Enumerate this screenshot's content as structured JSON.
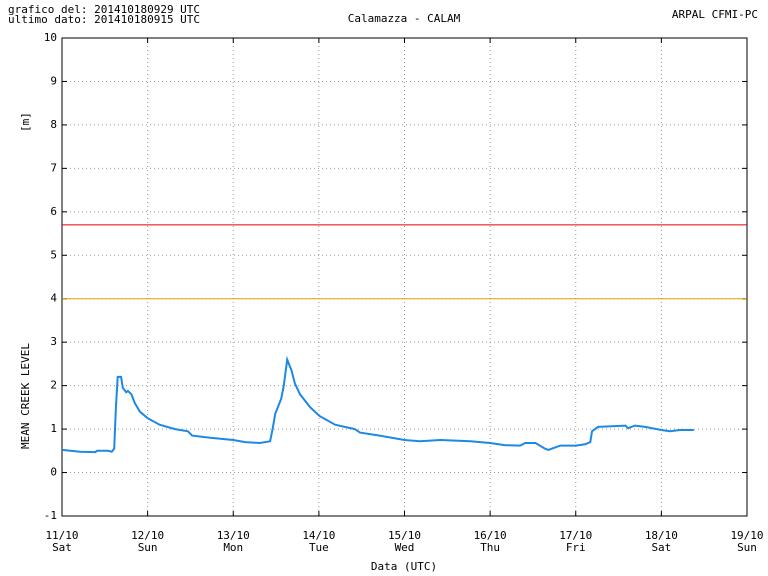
{
  "chart_data": {
    "type": "line",
    "title": "Calamazza - CALAM",
    "header_left": [
      "grafico del: 201410180929 UTC",
      "ultimo dato: 201410180915 UTC"
    ],
    "header_right": "ARPAL CFMI-PC",
    "y_unit": "[m]",
    "y_label": "MEAN CREEK LEVEL",
    "x_label": "Data (UTC)",
    "xlim": [
      11,
      19
    ],
    "xticks": [
      {
        "value": 11,
        "label": "11/10"
      },
      {
        "value": 12,
        "label": "12/10"
      },
      {
        "value": 13,
        "label": "13/10"
      },
      {
        "value": 14,
        "label": "14/10"
      },
      {
        "value": 15,
        "label": "15/10"
      },
      {
        "value": 16,
        "label": "16/10"
      },
      {
        "value": 17,
        "label": "17/10"
      },
      {
        "value": 18,
        "label": "18/10"
      },
      {
        "value": 19,
        "label": "19/10"
      }
    ],
    "xtick_days": [
      "Sat",
      "Sun",
      "Mon",
      "Tue",
      "Wed",
      "Thu",
      "Fri",
      "Sat",
      "Sun"
    ],
    "ylim": [
      -1,
      10
    ],
    "yticks": [
      -1,
      0,
      1,
      2,
      3,
      4,
      5,
      6,
      7,
      8,
      9,
      10
    ],
    "grid": true,
    "thresholds": [
      {
        "value": 5.7,
        "color": "#e00000"
      },
      {
        "value": 4.0,
        "color": "#e8a000"
      }
    ],
    "series": [
      {
        "color": "#1e88e5",
        "x": [
          11.0,
          11.21,
          11.39,
          11.41,
          11.54,
          11.58,
          11.61,
          11.63,
          11.65,
          11.69,
          11.71,
          11.75,
          11.77,
          11.81,
          11.85,
          11.91,
          12.0,
          12.14,
          12.32,
          12.47,
          12.52,
          12.73,
          13.0,
          13.14,
          13.31,
          13.43,
          13.46,
          13.49,
          13.56,
          13.59,
          13.63,
          13.68,
          13.72,
          13.78,
          13.9,
          14.01,
          14.19,
          14.42,
          14.48,
          14.71,
          15.0,
          15.18,
          15.42,
          15.77,
          16.0,
          16.18,
          16.35,
          16.41,
          16.53,
          16.64,
          16.68,
          16.82,
          17.0,
          17.11,
          17.17,
          17.19,
          17.26,
          17.58,
          17.61,
          17.69,
          17.81,
          18.0,
          18.1,
          18.22,
          18.38
        ],
        "values": [
          0.52,
          0.48,
          0.47,
          0.5,
          0.5,
          0.48,
          0.55,
          1.5,
          2.2,
          2.2,
          1.95,
          1.85,
          1.88,
          1.8,
          1.6,
          1.4,
          1.25,
          1.1,
          1.0,
          0.95,
          0.85,
          0.8,
          0.75,
          0.7,
          0.68,
          0.72,
          1.0,
          1.35,
          1.7,
          2.0,
          2.6,
          2.35,
          2.05,
          1.8,
          1.5,
          1.3,
          1.1,
          1.0,
          0.92,
          0.85,
          0.75,
          0.72,
          0.75,
          0.72,
          0.68,
          0.63,
          0.62,
          0.68,
          0.68,
          0.55,
          0.52,
          0.62,
          0.62,
          0.65,
          0.7,
          0.95,
          1.05,
          1.08,
          1.02,
          1.08,
          1.05,
          0.98,
          0.95,
          0.98,
          0.98
        ]
      }
    ]
  }
}
